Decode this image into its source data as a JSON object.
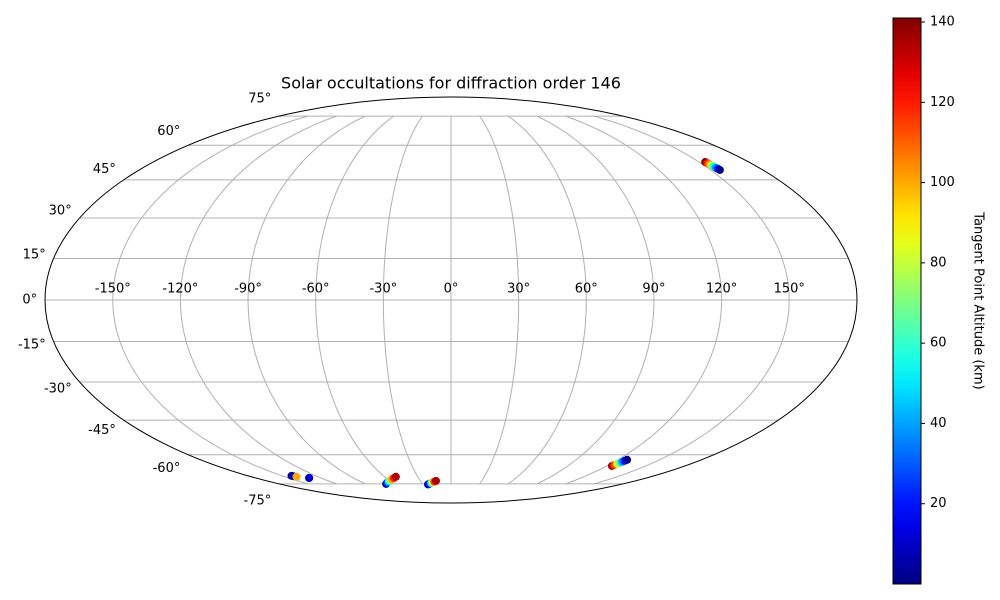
{
  "chart_data": {
    "type": "scatter",
    "projection": "mollweide",
    "title": "Solar occultations for diffraction order 146",
    "colorbar_label": "Tangent Point Altitude (km)",
    "colormap": "jet",
    "clim": [
      0,
      141
    ],
    "cticks": [
      20,
      40,
      60,
      80,
      100,
      120,
      140
    ],
    "xlim": [
      -180,
      180
    ],
    "ylim": [
      -90,
      90
    ],
    "xticks": [
      {
        "value": -150,
        "label": "-150°"
      },
      {
        "value": -120,
        "label": "-120°"
      },
      {
        "value": -90,
        "label": "-90°"
      },
      {
        "value": -60,
        "label": "-60°"
      },
      {
        "value": -30,
        "label": "-30°"
      },
      {
        "value": 0,
        "label": "0°"
      },
      {
        "value": 30,
        "label": "30°"
      },
      {
        "value": 60,
        "label": "60°"
      },
      {
        "value": 90,
        "label": "90°"
      },
      {
        "value": 120,
        "label": "120°"
      },
      {
        "value": 150,
        "label": "150°"
      }
    ],
    "yticks": [
      {
        "value": -75,
        "label": "-75°"
      },
      {
        "value": -60,
        "label": "-60°"
      },
      {
        "value": -45,
        "label": "-45°"
      },
      {
        "value": -30,
        "label": "-30°"
      },
      {
        "value": -15,
        "label": "-15°"
      },
      {
        "value": 0,
        "label": "0°"
      },
      {
        "value": 15,
        "label": "15°"
      },
      {
        "value": 30,
        "label": "30°"
      },
      {
        "value": 45,
        "label": "45°"
      },
      {
        "value": 60,
        "label": "60°"
      },
      {
        "value": 75,
        "label": "75°"
      }
    ],
    "grid": true,
    "x": [
      153.7,
      153.9,
      154.2,
      154.4,
      154.6,
      154.8,
      155.1,
      155.3,
      -141.7,
      -141.0,
      -139.5,
      -131.2,
      -130.6,
      -68,
      -65,
      -61.9,
      -58.9,
      -55.9,
      -52.8,
      -49.8,
      -24.4,
      -22.5,
      -20.5,
      -18.6,
      -16.6,
      -14.7,
      124,
      124.45,
      124.9,
      125.35,
      125.8,
      126.25,
      126.7
    ],
    "y": [
      52.5,
      52.0,
      51.5,
      51.0,
      50.6,
      50.1,
      49.6,
      49.1,
      -70.5,
      -70.7,
      -71.0,
      -71.7,
      -71.6,
      -75,
      -74.3,
      -73.7,
      -73,
      -72.3,
      -71.7,
      -71,
      -75.3,
      -74.9,
      -74.5,
      -74.1,
      -73.7,
      -73.3,
      -65.4,
      -64.9,
      -64.4,
      -63.9,
      -63.4,
      -62.9,
      -62.4
    ],
    "c": [
      140,
      120,
      100,
      80,
      60,
      40,
      20,
      2,
      3,
      8,
      100,
      3,
      10,
      2,
      25,
      50,
      75,
      100,
      120,
      135,
      2,
      20,
      50,
      85,
      115,
      135,
      135,
      115,
      90,
      65,
      40,
      20,
      2
    ]
  }
}
